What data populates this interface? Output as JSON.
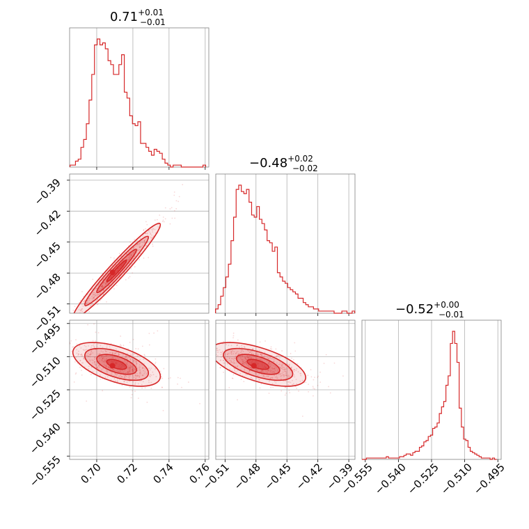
{
  "chart_data": {
    "type": "corner",
    "color": "#d62728",
    "grid": true,
    "panels": [
      {
        "kind": "hist",
        "row": 0,
        "col": 0,
        "title": {
          "value": "0.71",
          "upper": "+0.01",
          "lower": "−0.01"
        },
        "xlim": [
          0.685,
          0.762
        ],
        "x": [
          0.686,
          0.6875,
          0.689,
          0.6905,
          0.692,
          0.6935,
          0.695,
          0.6965,
          0.698,
          0.6995,
          0.701,
          0.7025,
          0.704,
          0.7055,
          0.707,
          0.7085,
          0.71,
          0.7115,
          0.713,
          0.7145,
          0.716,
          0.7175,
          0.719,
          0.7205,
          0.722,
          0.7235,
          0.725,
          0.7265,
          0.728,
          0.7295,
          0.731,
          0.7325,
          0.734,
          0.7355,
          0.737,
          0.7385,
          0.74,
          0.7415,
          0.743,
          0.7445,
          0.746,
          0.7475,
          0.749,
          0.7505,
          0.752,
          0.7535,
          0.755,
          0.7565,
          0.758,
          0.7595
        ],
        "values": [
          1,
          1,
          3,
          4,
          10,
          14,
          22,
          34,
          47,
          62,
          65,
          62,
          63,
          60,
          54,
          52,
          47,
          47,
          52,
          57,
          38,
          35,
          26,
          22,
          21,
          23,
          12,
          12,
          10,
          8,
          6,
          9,
          8,
          7,
          4,
          2,
          1,
          0,
          1,
          1,
          1,
          0,
          0,
          0,
          0,
          0,
          0,
          0,
          0,
          1
        ],
        "tick_values": [
          0.7,
          0.72,
          0.74,
          0.76
        ]
      },
      {
        "kind": "scatter2d",
        "row": 1,
        "col": 0,
        "xlim": [
          0.685,
          0.762
        ],
        "ylim": [
          -0.519,
          -0.384
        ],
        "corr": 0.97,
        "center": [
          0.711,
          -0.478
        ],
        "spread": [
          0.011,
          0.021
        ],
        "y_ticks": [
          "−0.39",
          "−0.42",
          "−0.45",
          "−0.48",
          "−0.51"
        ],
        "y_tick_values": [
          -0.39,
          -0.42,
          -0.45,
          -0.48,
          -0.51
        ]
      },
      {
        "kind": "hist",
        "row": 1,
        "col": 1,
        "title": {
          "value": "−0.48",
          "upper": "+0.02",
          "lower": "−0.02"
        },
        "xlim": [
          -0.519,
          -0.384
        ],
        "x": [
          -0.518,
          -0.5155,
          -0.513,
          -0.5105,
          -0.508,
          -0.5055,
          -0.503,
          -0.5005,
          -0.498,
          -0.4955,
          -0.493,
          -0.4905,
          -0.488,
          -0.4855,
          -0.483,
          -0.4805,
          -0.478,
          -0.4755,
          -0.473,
          -0.4705,
          -0.468,
          -0.4655,
          -0.463,
          -0.4605,
          -0.458,
          -0.4555,
          -0.453,
          -0.4505,
          -0.448,
          -0.4455,
          -0.443,
          -0.4405,
          -0.438,
          -0.4355,
          -0.433,
          -0.4305,
          -0.428,
          -0.4255,
          -0.423,
          -0.4205,
          -0.418,
          -0.4155,
          -0.413,
          -0.4105,
          -0.408,
          -0.4055,
          -0.403,
          -0.4005,
          -0.398,
          -0.3955,
          -0.393,
          -0.3905,
          -0.388,
          -0.3855
        ],
        "values": [
          2,
          4,
          8,
          12,
          17,
          23,
          34,
          45,
          58,
          60,
          57,
          56,
          58,
          52,
          46,
          45,
          50,
          44,
          42,
          39,
          34,
          33,
          29,
          31,
          19,
          17,
          15,
          14,
          12,
          11,
          10,
          9,
          7,
          7,
          5,
          4,
          3,
          3,
          2,
          2,
          1,
          1,
          1,
          1,
          1,
          1,
          0,
          0,
          0,
          1,
          1,
          0,
          0,
          1
        ],
        "tick_values": [
          -0.51,
          -0.48,
          -0.45,
          -0.42,
          -0.39
        ]
      },
      {
        "kind": "scatter2d",
        "row": 2,
        "col": 0,
        "xlim": [
          0.685,
          0.762
        ],
        "ylim": [
          -0.5565,
          -0.4935
        ],
        "corr": -0.55,
        "center": [
          0.711,
          -0.5135
        ],
        "spread": [
          0.011,
          0.0045
        ],
        "y_ticks": [
          "−0.495",
          "−0.510",
          "−0.525",
          "−0.540",
          "−0.555"
        ],
        "y_tick_values": [
          -0.495,
          -0.51,
          -0.525,
          -0.54,
          -0.555
        ],
        "x_ticks": [
          "0.70",
          "0.72",
          "0.74",
          "0.76"
        ],
        "x_tick_values": [
          0.7,
          0.72,
          0.74,
          0.76
        ]
      },
      {
        "kind": "scatter2d",
        "row": 2,
        "col": 1,
        "xlim": [
          -0.519,
          -0.384
        ],
        "ylim": [
          -0.5565,
          -0.4935
        ],
        "corr": -0.6,
        "center": [
          -0.478,
          -0.5135
        ],
        "spread": [
          0.021,
          0.0045
        ],
        "x_ticks": [
          "−0.51",
          "−0.48",
          "−0.45",
          "−0.42",
          "−0.39"
        ],
        "x_tick_values": [
          -0.51,
          -0.48,
          -0.45,
          -0.42,
          -0.39
        ]
      },
      {
        "kind": "hist",
        "row": 2,
        "col": 2,
        "title": {
          "value": "−0.52",
          "upper": "+0.00",
          "lower": "−0.01"
        },
        "xlim": [
          -0.5565,
          -0.4935
        ],
        "x": [
          -0.556,
          -0.555,
          -0.554,
          -0.553,
          -0.552,
          -0.551,
          -0.55,
          -0.549,
          -0.548,
          -0.547,
          -0.546,
          -0.545,
          -0.544,
          -0.543,
          -0.542,
          -0.541,
          -0.54,
          -0.539,
          -0.538,
          -0.537,
          -0.536,
          -0.535,
          -0.534,
          -0.533,
          -0.532,
          -0.531,
          -0.53,
          -0.529,
          -0.528,
          -0.527,
          -0.526,
          -0.525,
          -0.524,
          -0.523,
          -0.522,
          -0.521,
          -0.52,
          -0.519,
          -0.518,
          -0.517,
          -0.516,
          -0.515,
          -0.514,
          -0.513,
          -0.512,
          -0.511,
          -0.51,
          -0.509,
          -0.508,
          -0.507,
          -0.506,
          -0.505,
          -0.504,
          -0.503,
          -0.502,
          -0.501,
          -0.5,
          -0.499,
          -0.498,
          -0.497,
          -0.496
        ],
        "values": [
          0,
          0,
          1,
          1,
          1,
          1,
          1,
          1,
          1,
          1,
          1,
          2,
          1,
          1,
          1,
          1,
          1,
          2,
          2,
          3,
          4,
          4,
          3,
          5,
          6,
          6,
          9,
          10,
          13,
          14,
          17,
          18,
          23,
          24,
          27,
          34,
          39,
          43,
          55,
          62,
          86,
          95,
          86,
          72,
          38,
          24,
          15,
          14,
          9,
          6,
          5,
          4,
          3,
          2,
          1,
          1,
          1,
          1,
          0,
          1,
          0
        ],
        "x_ticks": [
          "−0.555",
          "−0.540",
          "−0.525",
          "−0.510",
          "−0.495"
        ],
        "x_tick_values": [
          -0.555,
          -0.54,
          -0.525,
          -0.51,
          -0.495
        ]
      }
    ]
  }
}
